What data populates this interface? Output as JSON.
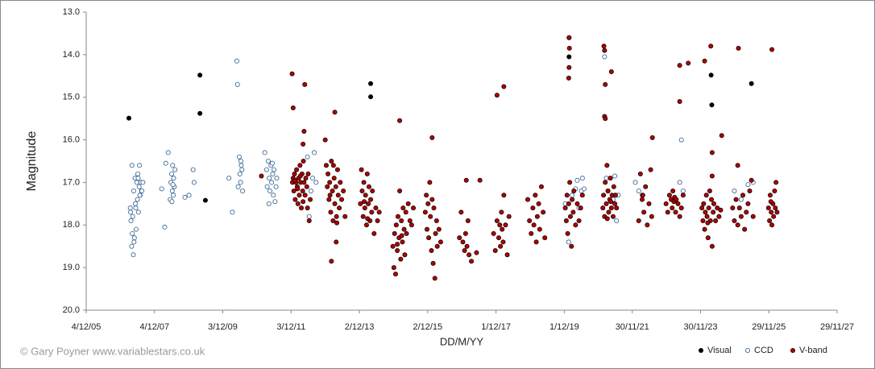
{
  "chart_data": {
    "type": "scatter",
    "ylabel": "Magnitude",
    "xlabel": "DD/M/YY",
    "credit": "© Gary Poyner www.variablestars.co.uk",
    "xlim": [
      2005.92,
      2027.91
    ],
    "xticks": [
      {
        "value": 2005.92,
        "label": "4/12/05"
      },
      {
        "value": 2007.92,
        "label": "4/12/07"
      },
      {
        "value": 2009.92,
        "label": "3/12/09"
      },
      {
        "value": 2011.92,
        "label": "3/12/11"
      },
      {
        "value": 2013.92,
        "label": "2/12/13"
      },
      {
        "value": 2015.92,
        "label": "2/12/15"
      },
      {
        "value": 2017.92,
        "label": "1/12/17"
      },
      {
        "value": 2019.92,
        "label": "1/12/19"
      },
      {
        "value": 2021.91,
        "label": "30/11/21"
      },
      {
        "value": 2023.91,
        "label": "30/11/23"
      },
      {
        "value": 2025.91,
        "label": "29/11/25"
      },
      {
        "value": 2027.91,
        "label": "29/11/27"
      }
    ],
    "ylim": [
      13,
      20
    ],
    "y_inverted": true,
    "yticks": [
      {
        "value": 13,
        "label": "13.0"
      },
      {
        "value": 14,
        "label": "14.0"
      },
      {
        "value": 15,
        "label": "15.0"
      },
      {
        "value": 16,
        "label": "16.0"
      },
      {
        "value": 17,
        "label": "17.0"
      },
      {
        "value": 18,
        "label": "18.0"
      },
      {
        "value": 19,
        "label": "19.0"
      },
      {
        "value": 20,
        "label": "20.0"
      }
    ],
    "grid": false,
    "legend": "lower right",
    "series": [
      {
        "name": "Visual",
        "color": "#000000",
        "edgecolor": "#000000",
        "x": [
          2007.17,
          2009.25,
          2009.25,
          2009.41,
          2014.25,
          2014.25,
          2020.06,
          2020.06,
          2024.22,
          2024.24,
          2025.4
        ],
        "values": [
          15.49,
          14.48,
          15.38,
          17.42,
          14.68,
          14.99,
          13.6,
          14.05,
          14.48,
          15.18,
          14.68
        ]
      },
      {
        "name": "CCD",
        "color": "#ffffff",
        "edgecolor": "#2e5f8f",
        "x": [
          2007.21,
          2007.23,
          2007.25,
          2007.26,
          2007.28,
          2007.3,
          2007.31,
          2007.33,
          2007.35,
          2007.36,
          2007.38,
          2007.4,
          2007.42,
          2007.43,
          2007.45,
          2007.47,
          2007.48,
          2007.5,
          2007.52,
          2007.54,
          2007.22,
          2007.27,
          2007.32,
          2007.37,
          2007.44,
          2007.49,
          2007.55,
          2007.58,
          2008.13,
          2008.22,
          2008.25,
          2008.32,
          2008.38,
          2008.4,
          2008.42,
          2008.44,
          2008.45,
          2008.47,
          2008.48,
          2008.5,
          2008.52,
          2008.43,
          2008.46,
          2008.81,
          2008.93,
          2009.05,
          2009.08,
          2010.1,
          2010.2,
          2010.33,
          2010.35,
          2010.4,
          2010.42,
          2010.44,
          2010.46,
          2010.48,
          2010.5,
          2010.45,
          2010.37,
          2011.15,
          2011.2,
          2011.22,
          2011.25,
          2011.28,
          2011.3,
          2011.33,
          2011.35,
          2011.38,
          2011.4,
          2011.42,
          2011.45,
          2011.48,
          2011.5,
          2011.27,
          2011.37,
          2012.4,
          2012.45,
          2012.5,
          2012.55,
          2012.6,
          2012.65,
          2019.95,
          2020.05,
          2020.15,
          2020.25,
          2020.3,
          2020.35,
          2020.42,
          2020.45,
          2020.5,
          2021.1,
          2021.15,
          2021.2,
          2021.35,
          2021.4,
          2021.45,
          2021.5,
          2022.0,
          2022.1,
          2022.2,
          2023.3,
          2023.35,
          2023.4,
          2024.9,
          2025.1,
          2025.3,
          2025.45
        ],
        "values": [
          17.6,
          17.9,
          18.5,
          16.6,
          17.8,
          18.7,
          17.2,
          18.3,
          16.9,
          17.5,
          18.1,
          17.0,
          17.4,
          16.8,
          17.7,
          17.1,
          16.6,
          17.3,
          17.0,
          17.2,
          17.7,
          18.2,
          18.4,
          17.6,
          16.9,
          17.3,
          17.2,
          17.0,
          17.15,
          18.05,
          16.55,
          16.3,
          17.4,
          17.0,
          16.8,
          17.2,
          16.6,
          17.3,
          16.9,
          17.1,
          16.7,
          17.45,
          17.05,
          17.35,
          17.3,
          16.7,
          17.0,
          16.9,
          17.7,
          14.15,
          14.7,
          16.4,
          16.8,
          17.0,
          16.6,
          16.7,
          17.2,
          16.5,
          17.1,
          16.3,
          16.7,
          17.1,
          16.5,
          16.9,
          17.2,
          16.6,
          17.0,
          16.8,
          17.3,
          16.7,
          17.45,
          17.1,
          16.9,
          17.5,
          16.55,
          16.4,
          17.8,
          17.2,
          16.9,
          16.3,
          17.0,
          17.5,
          18.4,
          17.3,
          17.15,
          16.95,
          17.6,
          17.2,
          16.9,
          17.15,
          14.05,
          16.9,
          17.2,
          17.4,
          16.85,
          17.9,
          17.3,
          17.0,
          17.2,
          17.3,
          17.0,
          16.0,
          17.2,
          17.2,
          17.4,
          17.05,
          17.0
        ]
      },
      {
        "name": "V-band",
        "color": "#b00000",
        "edgecolor": "#1a0000",
        "x": [
          2011.05,
          2011.95,
          2011.98,
          2012.32,
          2012.3,
          2012.27,
          2011.96,
          2011.98,
          2012.0,
          2012.02,
          2012.04,
          2012.06,
          2012.08,
          2012.1,
          2012.12,
          2012.14,
          2012.16,
          2012.18,
          2012.2,
          2012.22,
          2012.24,
          2012.26,
          2012.28,
          2012.3,
          2012.33,
          2012.35,
          2012.38,
          2012.4,
          2012.42,
          2012.45,
          2012.48,
          2012.03,
          2012.11,
          2012.19,
          2012.27,
          2013.2,
          2013.1,
          2013.24,
          2012.92,
          2012.95,
          2012.98,
          2013.0,
          2013.03,
          2013.05,
          2013.08,
          2013.1,
          2013.13,
          2013.15,
          2013.18,
          2013.2,
          2013.23,
          2013.25,
          2013.28,
          2013.3,
          2013.33,
          2013.36,
          2013.4,
          2013.45,
          2013.5,
          2013.06,
          2013.16,
          2013.26,
          2013.95,
          2013.98,
          2014.0,
          2014.03,
          2014.05,
          2014.08,
          2014.1,
          2014.13,
          2014.15,
          2014.18,
          2014.2,
          2014.23,
          2014.25,
          2014.28,
          2014.3,
          2014.35,
          2014.4,
          2014.45,
          2014.5,
          2014.06,
          2014.16,
          2015.1,
          2014.9,
          2014.93,
          2014.95,
          2014.98,
          2015.0,
          2015.03,
          2015.05,
          2015.08,
          2015.1,
          2015.13,
          2015.15,
          2015.18,
          2015.2,
          2015.23,
          2015.25,
          2015.28,
          2015.3,
          2015.35,
          2015.4,
          2015.45,
          2015.5,
          2015.03,
          2015.16,
          2016.05,
          2015.85,
          2015.88,
          2015.9,
          2015.93,
          2015.95,
          2015.98,
          2016.0,
          2016.03,
          2016.05,
          2016.08,
          2016.1,
          2016.13,
          2016.15,
          2016.18,
          2016.2,
          2016.25,
          2016.3,
          2017.05,
          2017.45,
          2016.85,
          2016.9,
          2016.95,
          2017.0,
          2017.03,
          2017.07,
          2017.1,
          2017.13,
          2017.2,
          2017.35,
          2017.95,
          2018.15,
          2017.85,
          2017.9,
          2017.95,
          2018.0,
          2018.03,
          2018.05,
          2018.08,
          2018.1,
          2018.13,
          2018.15,
          2018.2,
          2018.25,
          2018.3,
          2018.85,
          2018.9,
          2018.95,
          2019.0,
          2019.03,
          2019.07,
          2019.1,
          2019.13,
          2019.17,
          2019.2,
          2019.25,
          2019.3,
          2019.35,
          2020.06,
          2020.07,
          2020.06,
          2020.05,
          2019.95,
          2019.98,
          2020.0,
          2020.02,
          2020.05,
          2020.08,
          2020.1,
          2020.13,
          2020.15,
          2020.18,
          2020.2,
          2020.25,
          2020.3,
          2020.35,
          2020.4,
          2020.45,
          2021.08,
          2021.1,
          2021.3,
          2021.12,
          2021.1,
          2021.12,
          2021.05,
          2021.07,
          2021.1,
          2021.12,
          2021.15,
          2021.17,
          2021.2,
          2021.22,
          2021.25,
          2021.27,
          2021.3,
          2021.32,
          2021.35,
          2021.37,
          2021.4,
          2021.42,
          2021.45,
          2021.18,
          2021.28,
          2022.5,
          2022.1,
          2022.15,
          2022.2,
          2022.25,
          2022.3,
          2022.35,
          2022.4,
          2022.45,
          2022.48,
          2022.22,
          2023.3,
          2023.3,
          2023.55,
          2022.9,
          2022.95,
          2023.0,
          2023.05,
          2023.08,
          2023.1,
          2023.13,
          2023.15,
          2023.18,
          2023.2,
          2023.25,
          2023.3,
          2023.35,
          2023.4,
          2024.21,
          2024.03,
          2024.53,
          2024.25,
          2024.25,
          2023.95,
          2023.98,
          2024.0,
          2024.03,
          2024.05,
          2024.08,
          2024.1,
          2024.13,
          2024.15,
          2024.18,
          2024.2,
          2024.23,
          2024.25,
          2024.28,
          2024.3,
          2024.35,
          2024.4,
          2024.45,
          2024.5,
          2024.12,
          2025.02,
          2025.0,
          2024.85,
          2024.9,
          2024.95,
          2025.0,
          2025.05,
          2025.1,
          2025.15,
          2025.2,
          2025.25,
          2025.3,
          2025.35,
          2025.4,
          2025.45,
          2026.0,
          2025.9,
          2025.93,
          2025.95,
          2025.98,
          2026.0,
          2026.03,
          2026.05,
          2026.08,
          2026.1,
          2026.12,
          2026.15,
          2025.97
        ],
        "values": [
          16.85,
          14.45,
          15.25,
          14.7,
          15.8,
          16.1,
          17.0,
          16.9,
          17.2,
          16.8,
          17.4,
          17.0,
          16.7,
          17.1,
          17.5,
          16.9,
          17.3,
          16.6,
          17.0,
          17.6,
          16.8,
          17.2,
          16.5,
          17.0,
          17.3,
          16.9,
          17.1,
          17.6,
          16.8,
          17.9,
          17.4,
          16.95,
          17.15,
          16.85,
          17.45,
          15.35,
          18.85,
          18.4,
          16.0,
          16.6,
          17.1,
          16.8,
          17.4,
          17.0,
          17.7,
          16.5,
          17.2,
          17.9,
          16.9,
          17.5,
          17.1,
          17.8,
          16.7,
          17.3,
          17.6,
          17.0,
          17.4,
          17.2,
          17.8,
          17.3,
          16.6,
          17.95,
          17.5,
          16.7,
          17.2,
          17.8,
          17.0,
          17.6,
          17.3,
          18.0,
          16.8,
          17.5,
          17.1,
          17.9,
          17.4,
          17.7,
          17.2,
          18.2,
          17.6,
          17.9,
          17.7,
          17.45,
          17.85,
          15.55,
          18.5,
          19.0,
          18.2,
          19.15,
          18.0,
          18.6,
          17.8,
          18.3,
          17.2,
          18.8,
          17.9,
          18.4,
          17.6,
          18.1,
          18.7,
          17.7,
          18.2,
          17.5,
          17.9,
          18.0,
          17.6,
          18.45,
          18.25,
          15.95,
          17.7,
          17.3,
          18.1,
          17.5,
          18.3,
          17.0,
          17.8,
          18.6,
          17.4,
          18.9,
          17.6,
          19.25,
          18.2,
          17.9,
          18.5,
          18.1,
          18.4,
          16.95,
          16.95,
          18.3,
          17.7,
          18.4,
          18.6,
          18.2,
          18.5,
          17.9,
          18.7,
          18.85,
          18.65,
          14.95,
          14.75,
          18.2,
          18.6,
          17.9,
          18.3,
          18.0,
          18.5,
          17.7,
          18.1,
          18.4,
          17.3,
          18.0,
          18.7,
          17.8,
          17.4,
          17.9,
          18.2,
          17.6,
          18.0,
          17.3,
          18.4,
          17.8,
          17.5,
          18.1,
          17.1,
          17.7,
          18.3,
          13.6,
          13.85,
          14.3,
          14.55,
          17.6,
          17.9,
          17.3,
          18.2,
          17.5,
          17.0,
          17.8,
          18.5,
          17.4,
          17.7,
          17.2,
          18.0,
          17.5,
          17.9,
          17.6,
          17.3,
          13.8,
          13.9,
          14.4,
          14.7,
          15.45,
          15.5,
          17.6,
          17.3,
          17.8,
          17.0,
          17.5,
          16.6,
          17.2,
          17.7,
          17.4,
          16.9,
          17.6,
          17.3,
          17.8,
          17.1,
          17.5,
          17.3,
          17.6,
          17.85,
          17.45,
          15.95,
          17.9,
          16.8,
          17.4,
          17.7,
          17.1,
          18.0,
          17.5,
          16.7,
          17.8,
          17.3,
          14.25,
          15.1,
          14.2,
          17.5,
          17.7,
          17.3,
          17.4,
          17.6,
          17.2,
          17.45,
          17.35,
          17.7,
          17.4,
          17.5,
          17.8,
          17.6,
          17.3,
          13.8,
          14.15,
          15.9,
          16.3,
          16.85,
          17.6,
          17.9,
          17.5,
          18.1,
          17.7,
          17.3,
          17.8,
          18.3,
          17.6,
          17.2,
          17.9,
          17.4,
          18.5,
          17.7,
          17.5,
          17.9,
          17.6,
          17.8,
          17.65,
          17.95,
          13.85,
          16.6,
          17.6,
          17.9,
          17.4,
          18.0,
          17.6,
          17.8,
          17.3,
          18.1,
          17.7,
          17.5,
          17.2,
          16.95,
          17.8,
          13.88,
          17.6,
          17.9,
          17.3,
          17.7,
          18.0,
          17.5,
          17.8,
          17.2,
          17.6,
          17.0,
          17.7,
          17.45
        ]
      }
    ]
  }
}
